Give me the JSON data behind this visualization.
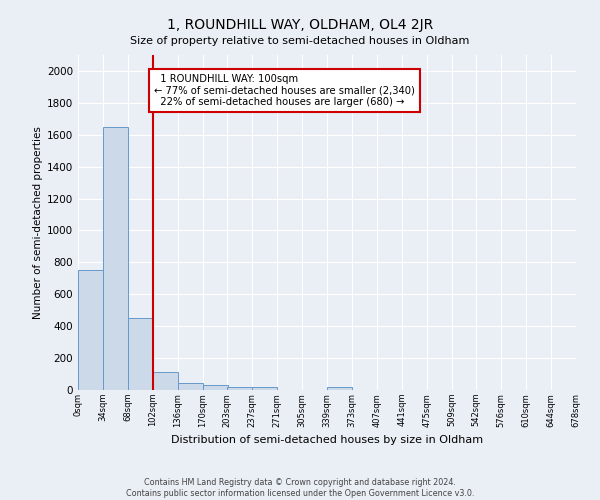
{
  "title": "1, ROUNDHILL WAY, OLDHAM, OL4 2JR",
  "subtitle": "Size of property relative to semi-detached houses in Oldham",
  "xlabel": "Distribution of semi-detached houses by size in Oldham",
  "ylabel": "Number of semi-detached properties",
  "footer_line1": "Contains HM Land Registry data © Crown copyright and database right 2024.",
  "footer_line2": "Contains public sector information licensed under the Open Government Licence v3.0.",
  "bin_edges": [
    0,
    34,
    68,
    102,
    136,
    170,
    203,
    237,
    271,
    305,
    339,
    373,
    407,
    441,
    475,
    509,
    542,
    576,
    610,
    644,
    678
  ],
  "bar_heights": [
    750,
    1650,
    450,
    110,
    45,
    30,
    20,
    20,
    0,
    0,
    20,
    0,
    0,
    0,
    0,
    0,
    0,
    0,
    0,
    0
  ],
  "bar_color": "#ccd9e8",
  "bar_edgecolor": "#6699cc",
  "bg_color": "#eaeef5",
  "grid_color": "#ffffff",
  "property_line_x": 102,
  "property_label": "1 ROUNDHILL WAY: 100sqm",
  "pct_smaller": 77,
  "pct_smaller_count": "2,340",
  "pct_larger": 22,
  "pct_larger_count": "680",
  "annotation_box_color": "#ffffff",
  "annotation_box_edge": "#cc0000",
  "red_line_color": "#cc0000",
  "ylim": [
    0,
    2100
  ],
  "yticks": [
    0,
    200,
    400,
    600,
    800,
    1000,
    1200,
    1400,
    1600,
    1800,
    2000
  ]
}
